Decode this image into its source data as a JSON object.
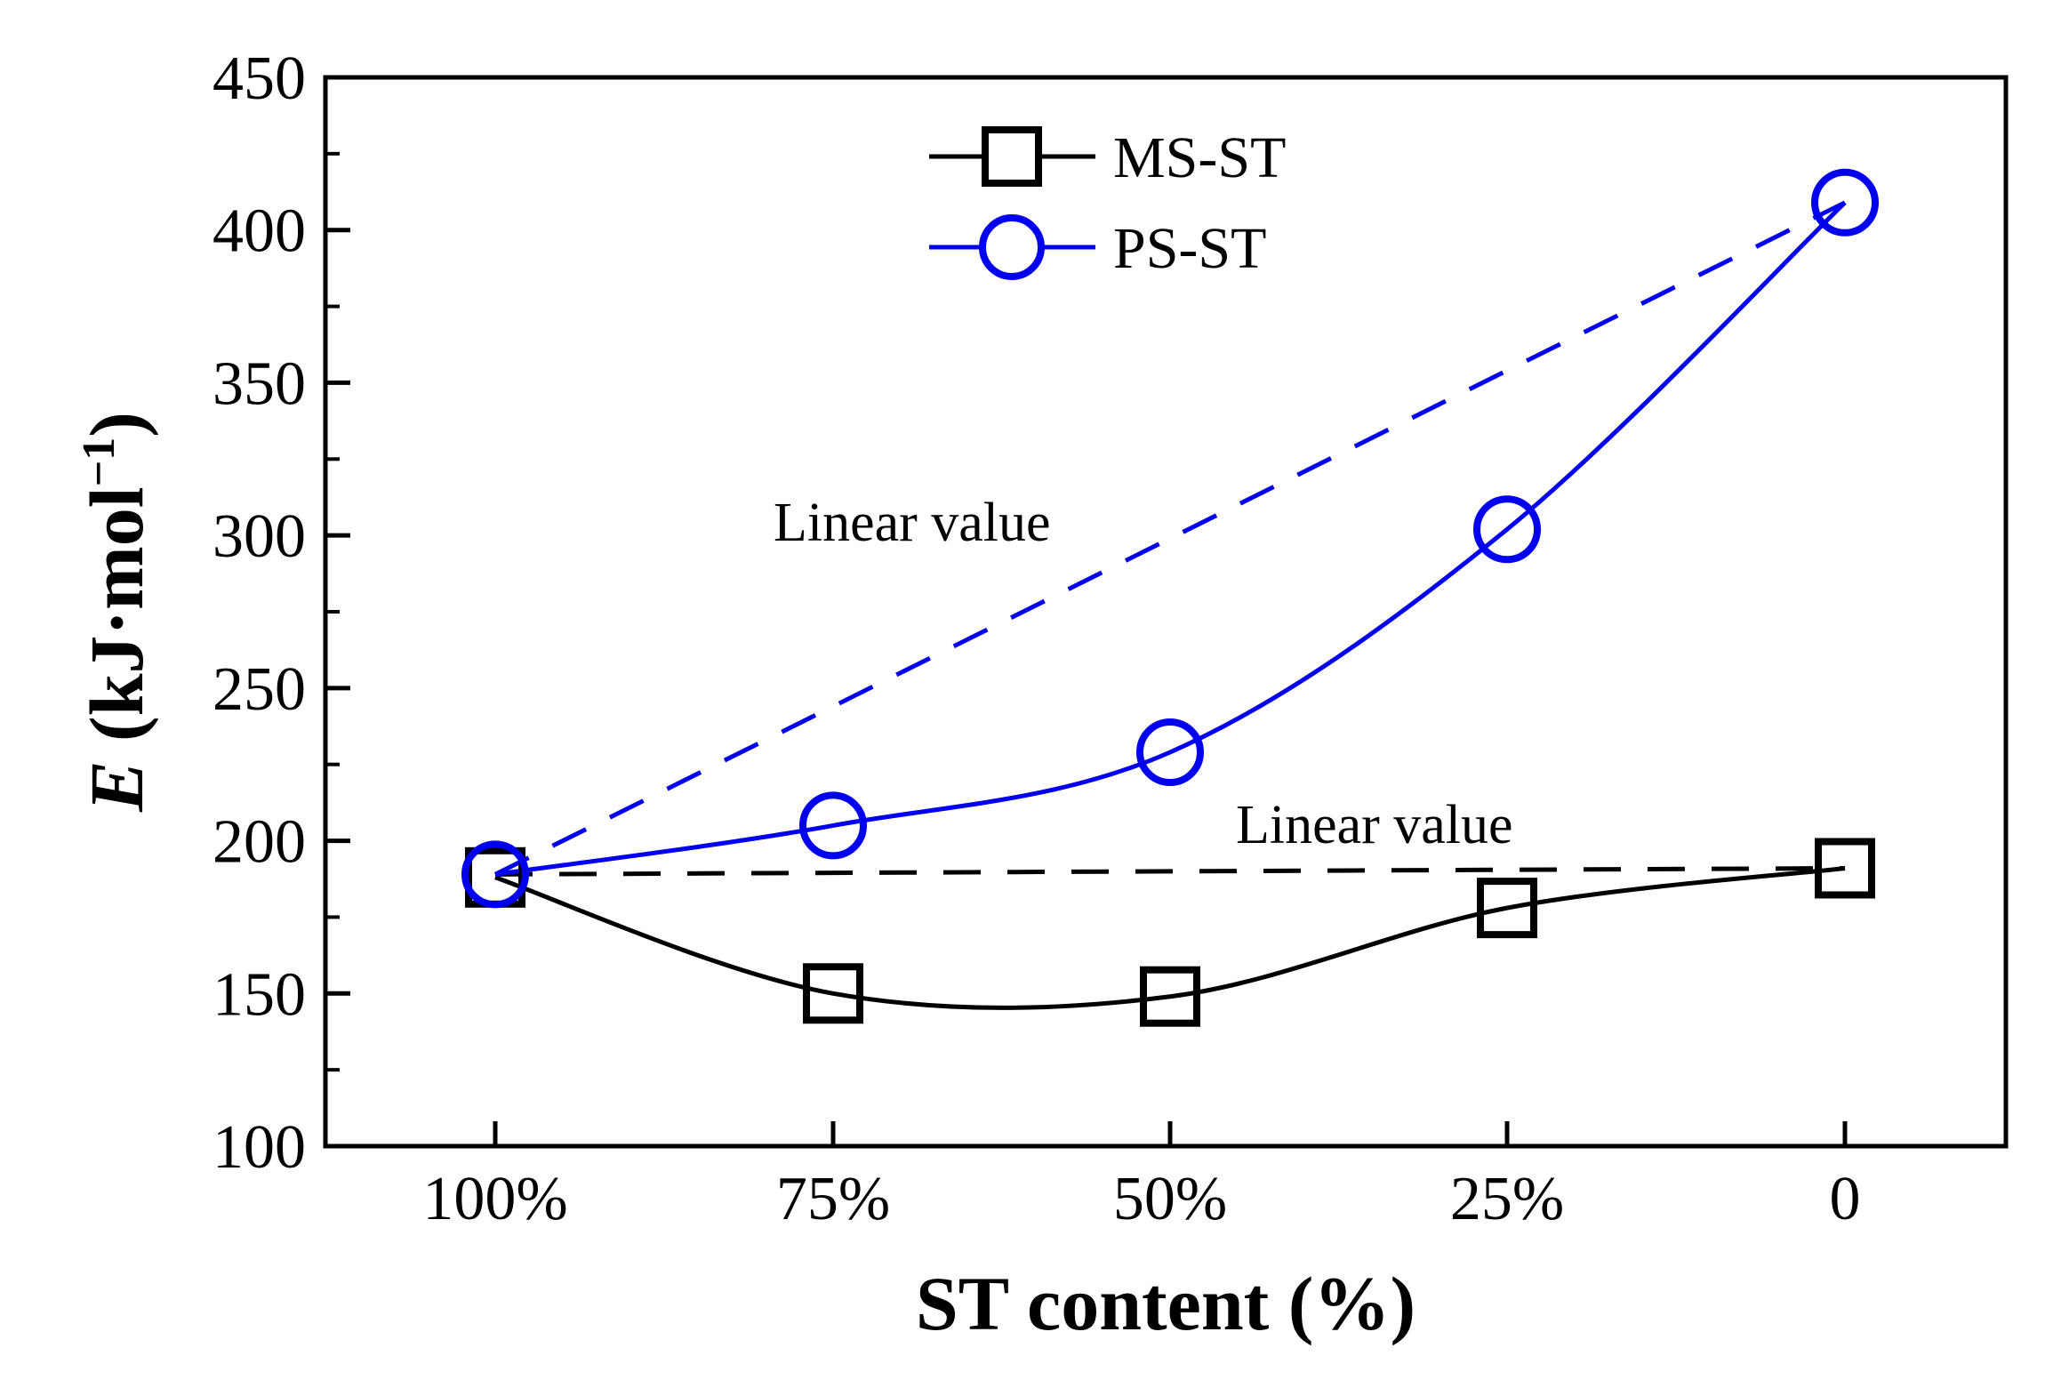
{
  "chart_data": {
    "type": "line",
    "title": "",
    "xlabel": "ST content (%)",
    "ylabel": {
      "italic_part": "E",
      "rest": " (kJ·mol",
      "superscript": "−1",
      "close": ")"
    },
    "categories": [
      "100%",
      "75%",
      "50%",
      "25%",
      "0"
    ],
    "ylim": [
      100,
      450
    ],
    "y_ticks": [
      "100",
      "150",
      "200",
      "250",
      "300",
      "350",
      "400",
      "450"
    ],
    "legend_position": "top-center",
    "series": [
      {
        "name": "MS-ST",
        "marker": "square",
        "color": "#000000",
        "values": [
          188,
          150,
          149,
          178,
          191
        ]
      },
      {
        "name": "PS-ST",
        "marker": "circle",
        "color": "#0000ee",
        "values": [
          189,
          205,
          229,
          302,
          409
        ]
      }
    ],
    "linear_references": [
      {
        "series": "MS-ST",
        "label": "Linear value",
        "color": "#000000",
        "values": [
          189,
          189.5,
          190,
          190.5,
          191
        ]
      },
      {
        "series": "PS-ST",
        "label": "Linear value",
        "color": "#0000ee",
        "values": [
          189,
          244,
          299,
          354,
          409
        ]
      }
    ],
    "grid": false
  }
}
